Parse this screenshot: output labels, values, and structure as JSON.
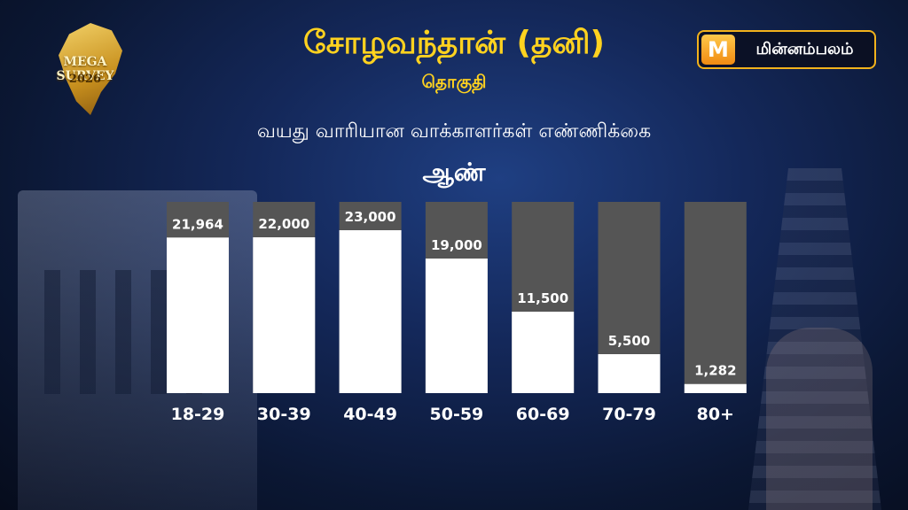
{
  "header": {
    "title": "சோழவந்தான் (தனி)",
    "subtitle": "தொகுதி"
  },
  "logos": {
    "left_line1": "MEGA SURVEY",
    "left_line2": "2026",
    "right_icon": "M",
    "right_brand": "மின்னம்பலம்"
  },
  "colors": {
    "title": "#ffd21f",
    "bar_fill": "#ffffff",
    "bar_track": "#555555",
    "text": "#ffffff"
  },
  "chart_data": {
    "type": "bar",
    "title": "வயது வாரியான வாக்காளர்கள் எண்ணிக்கை",
    "subtitle": "ஆண்",
    "categories": [
      "18-29",
      "30-39",
      "40-49",
      "50-59",
      "60-69",
      "70-79",
      "80+"
    ],
    "values": [
      21964,
      22000,
      23000,
      19000,
      11500,
      5500,
      1282
    ],
    "value_labels": [
      "21,964",
      "22,000",
      "23,000",
      "19,000",
      "11,500",
      "5,500",
      "1,282"
    ],
    "ylim": [
      0,
      27000
    ],
    "grid": false,
    "legend": "none"
  }
}
